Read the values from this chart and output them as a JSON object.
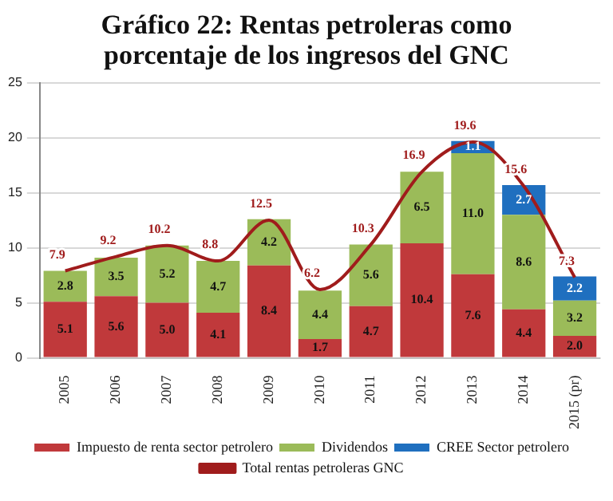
{
  "chart_data": {
    "type": "bar",
    "title": "Gráfico 22: Rentas petroleras como porcentaje de los ingresos del GNC",
    "categories": [
      "2005",
      "2006",
      "2007",
      "2008",
      "2009",
      "2010",
      "2011",
      "2012",
      "2013",
      "2014",
      "2015 (pr)"
    ],
    "stacked": true,
    "ylim": [
      0,
      25
    ],
    "yticks": [
      0,
      5,
      10,
      15,
      20,
      25
    ],
    "grid": "y",
    "legend": "bottom",
    "series": [
      {
        "name": "Impuesto de renta sector petrolero",
        "color": "#c0393b",
        "values": [
          5.1,
          5.6,
          5.0,
          4.1,
          8.4,
          1.7,
          4.7,
          10.4,
          7.6,
          4.4,
          2.0
        ],
        "value_labels": [
          "5.1",
          "5.6",
          "5.0",
          "4.1",
          "8.4",
          "1.7",
          "4.7",
          "10.4",
          "7.6",
          "4.4",
          "2.0"
        ]
      },
      {
        "name": "Dividendos",
        "color": "#9bbb59",
        "values": [
          2.8,
          3.5,
          5.2,
          4.7,
          4.2,
          4.4,
          5.6,
          6.5,
          11.0,
          8.6,
          3.2
        ],
        "value_labels": [
          "2.8",
          "3.5",
          "5.2",
          "4.7",
          "4.2",
          "4.4",
          "5.6",
          "6.5",
          "11.0",
          "8.6",
          "3.2"
        ]
      },
      {
        "name": "CREE Sector petrolero",
        "color": "#1f6fbf",
        "values": [
          null,
          null,
          null,
          null,
          null,
          null,
          null,
          null,
          1.1,
          2.7,
          2.2
        ],
        "value_labels": [
          null,
          null,
          null,
          null,
          null,
          null,
          null,
          null,
          "1.1",
          "2.7",
          "2.2"
        ]
      },
      {
        "name": "Total rentas petroleras GNC",
        "type": "line",
        "color": "#a01c1c",
        "values": [
          7.9,
          9.2,
          10.2,
          8.8,
          12.5,
          6.2,
          10.3,
          16.9,
          19.6,
          15.6,
          7.3
        ],
        "value_labels": [
          "7.9",
          "9.2",
          "10.2",
          "8.8",
          "12.5",
          "6.2",
          "10.3",
          "16.9",
          "19.6",
          "15.6",
          "7.3"
        ]
      }
    ]
  }
}
